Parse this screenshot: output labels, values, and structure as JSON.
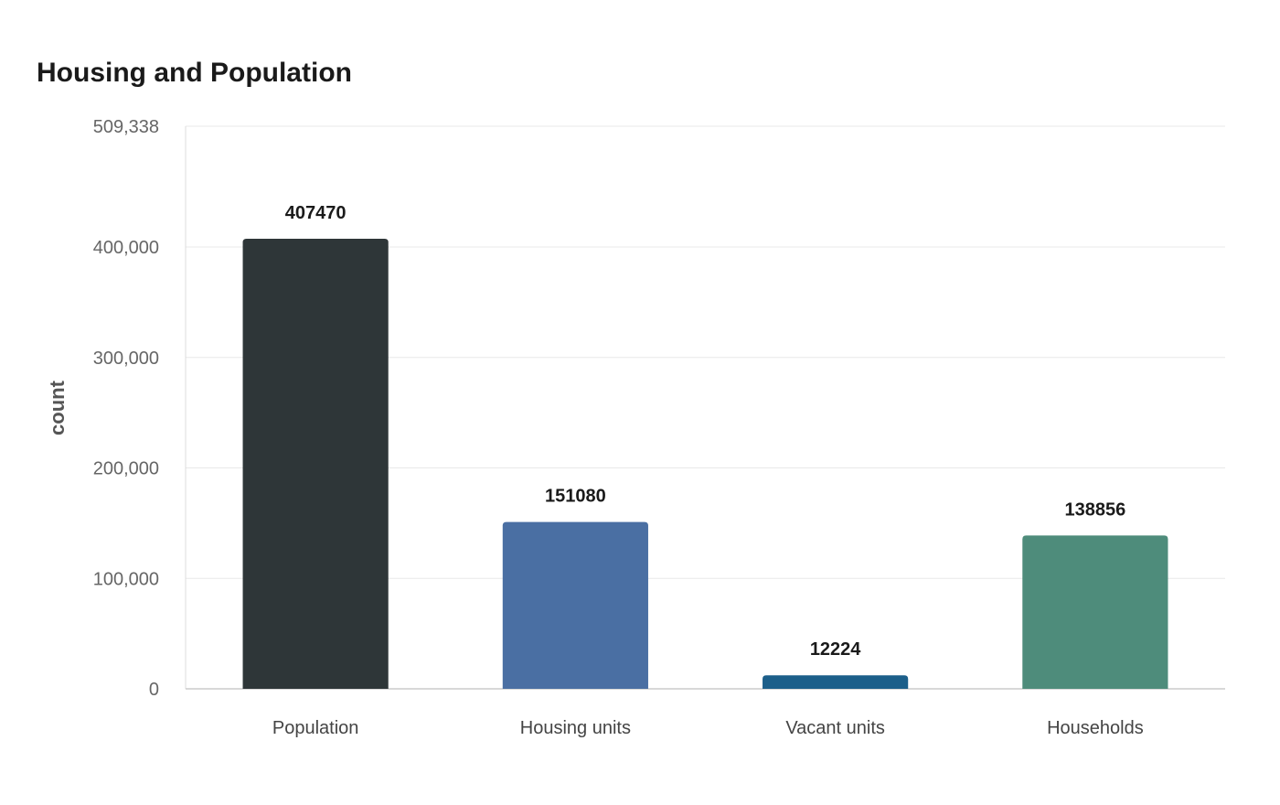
{
  "chart_data": {
    "type": "bar",
    "title": "Housing and Population",
    "xlabel": "",
    "ylabel": "count",
    "categories": [
      "Population",
      "Housing units",
      "Vacant units",
      "Households"
    ],
    "values": [
      407470,
      151080,
      12224,
      138856
    ],
    "value_labels": [
      "407470",
      "151080",
      "12224",
      "138856"
    ],
    "colors": [
      "#2e3638",
      "#4a6fa3",
      "#1c5f8a",
      "#4e8c7b"
    ],
    "ylim": [
      0,
      509338
    ],
    "yticks": [
      0,
      100000,
      200000,
      300000,
      400000,
      509338
    ],
    "ytick_labels": [
      "0",
      "100,000",
      "200,000",
      "300,000",
      "400,000",
      "509,338"
    ],
    "grid": true,
    "legend": "none"
  }
}
